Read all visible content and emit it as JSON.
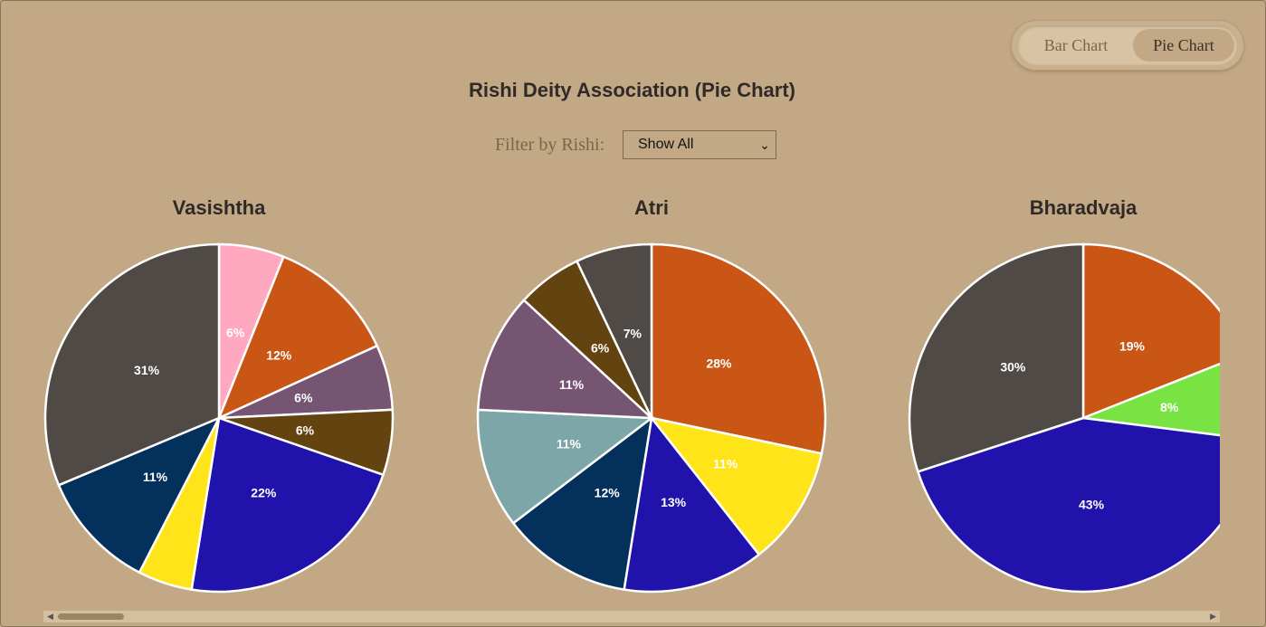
{
  "toggle": {
    "bar_label": "Bar Chart",
    "pie_label": "Pie Chart",
    "active": "Pie Chart"
  },
  "filter": {
    "label": "Filter by Rishi:",
    "selected": "Show All"
  },
  "chart_data": {
    "type": "pie",
    "title": "Rishi Deity Association (Pie Chart)",
    "pies": [
      {
        "name": "Vasishtha",
        "slices": [
          {
            "value": 6,
            "label": "6%",
            "color": "#ffa8c0"
          },
          {
            "value": 12,
            "label": "12%",
            "color": "#ca5615"
          },
          {
            "value": 6,
            "label": "6%",
            "color": "#765573"
          },
          {
            "value": 6,
            "label": "6%",
            "color": "#634410"
          },
          {
            "value": 22,
            "label": "22%",
            "color": "#2112ab"
          },
          {
            "value": 5,
            "label": "",
            "color": "#ffe419"
          },
          {
            "value": 11,
            "label": "11%",
            "color": "#04305c"
          },
          {
            "value": 31,
            "label": "31%",
            "color": "#4f4a45"
          }
        ]
      },
      {
        "name": "Atri",
        "slices": [
          {
            "value": 28,
            "label": "28%",
            "color": "#ca5615"
          },
          {
            "value": 11,
            "label": "11%",
            "color": "#ffe419"
          },
          {
            "value": 13,
            "label": "13%",
            "color": "#2112ab"
          },
          {
            "value": 12,
            "label": "12%",
            "color": "#04305c"
          },
          {
            "value": 11,
            "label": "11%",
            "color": "#7da6a9"
          },
          {
            "value": 11,
            "label": "11%",
            "color": "#765573"
          },
          {
            "value": 6,
            "label": "6%",
            "color": "#634410"
          },
          {
            "value": 7,
            "label": "7%",
            "color": "#4f4a45"
          }
        ]
      },
      {
        "name": "Bharadvaja",
        "slices": [
          {
            "value": 19,
            "label": "19%",
            "color": "#ca5615"
          },
          {
            "value": 8,
            "label": "8%",
            "color": "#7ae344"
          },
          {
            "value": 43,
            "label": "43%",
            "color": "#2112ab"
          },
          {
            "value": 30,
            "label": "30%",
            "color": "#4f4a45"
          }
        ]
      }
    ]
  }
}
